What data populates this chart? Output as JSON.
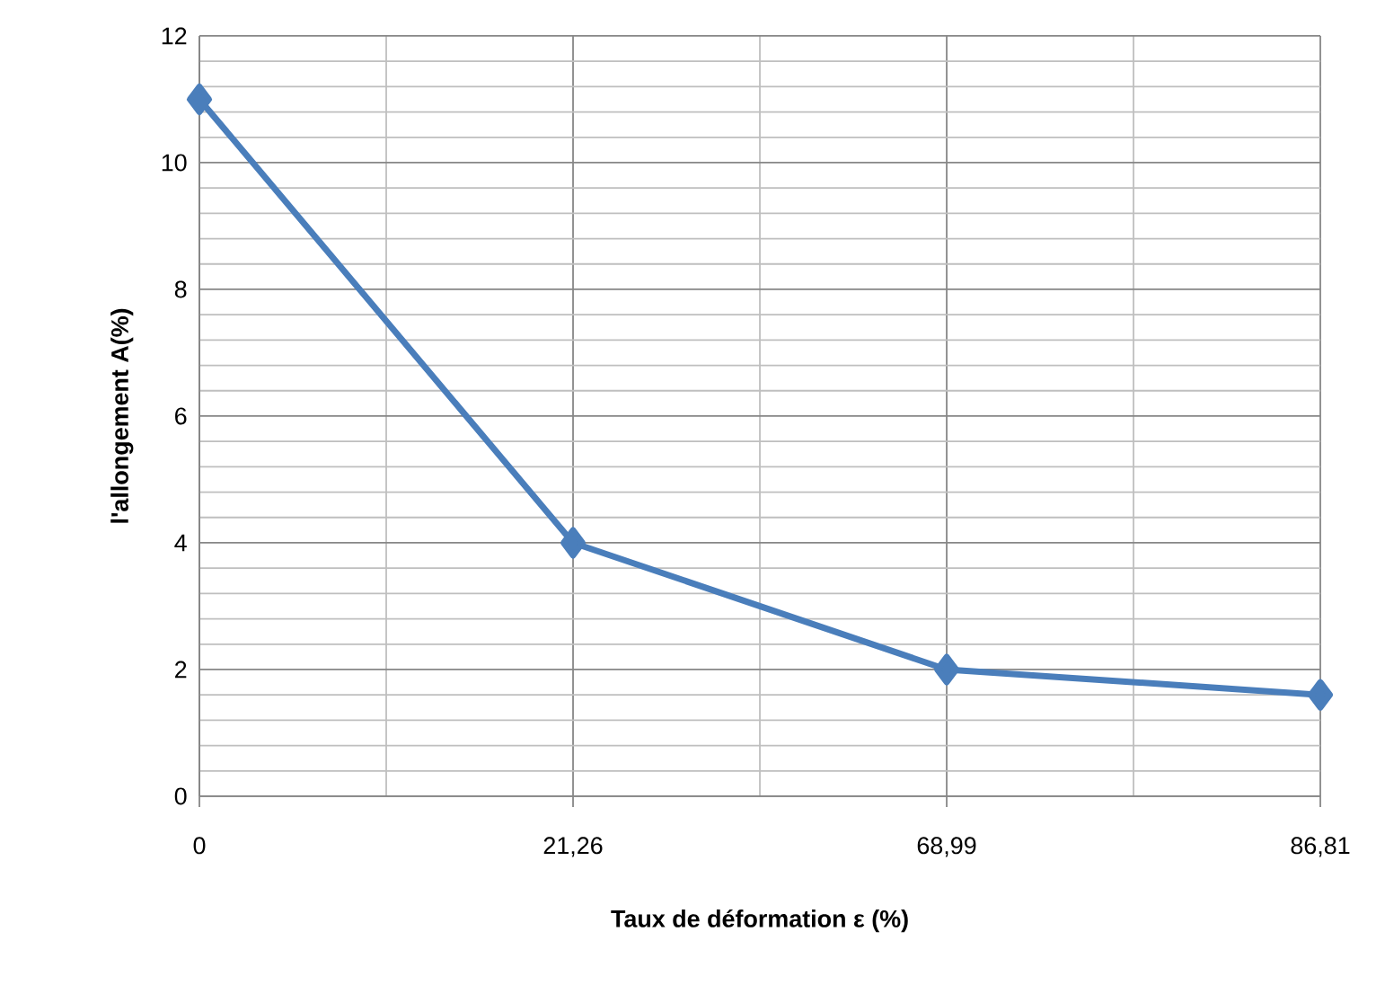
{
  "chart_data": {
    "type": "line",
    "xlabel": "Taux de déformation ε (%)",
    "ylabel": "l'allongement A(%)",
    "categories": [
      "0",
      "21,26",
      "68,99",
      "86,81"
    ],
    "series": [
      {
        "color": "#4a7ebb",
        "values": [
          11,
          4,
          2,
          1.6
        ]
      }
    ],
    "ylim": [
      0,
      12
    ],
    "yticks": [
      0,
      2,
      4,
      6,
      8,
      10,
      12
    ],
    "grid": true,
    "marker": "diamond",
    "line_style": "solid"
  }
}
